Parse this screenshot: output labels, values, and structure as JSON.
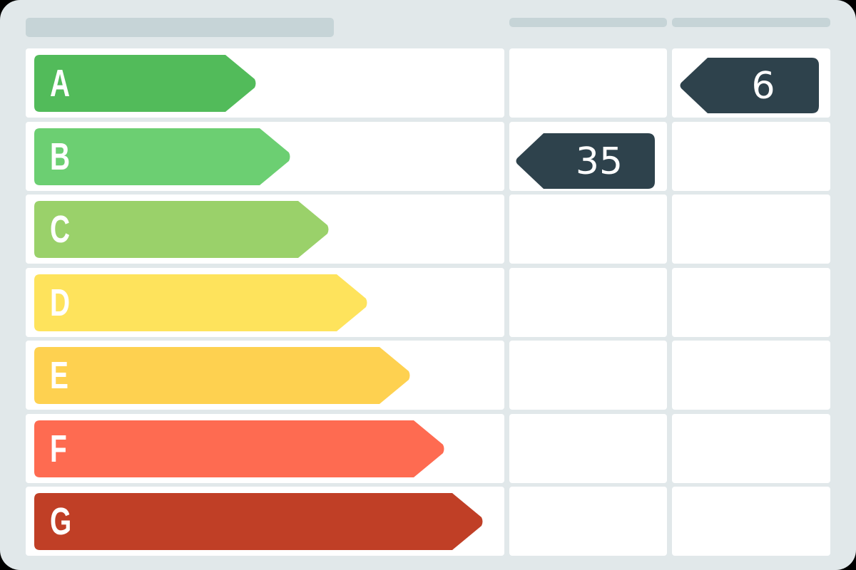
{
  "ratings": [
    {
      "label": "A",
      "color": "#52bb5a"
    },
    {
      "label": "B",
      "color": "#6ccf72"
    },
    {
      "label": "C",
      "color": "#9ad16a"
    },
    {
      "label": "D",
      "color": "#fee35c"
    },
    {
      "label": "E",
      "color": "#fed150"
    },
    {
      "label": "F",
      "color": "#fe6b51"
    },
    {
      "label": "G",
      "color": "#c03f26"
    }
  ],
  "current": {
    "rating": "B",
    "value": "35"
  },
  "potential": {
    "rating": "A",
    "value": "6"
  },
  "tag_color": "#2e424c"
}
